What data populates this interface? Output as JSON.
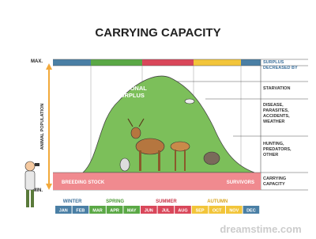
{
  "title": "CARRYING CAPACITY",
  "axis": {
    "max": "MAX.",
    "min": "MIN.",
    "label": "ANIMAL POPULATION"
  },
  "curve_label": [
    "SEASONAL",
    "SURPLUS"
  ],
  "band": {
    "left": "BREEDING STOCK",
    "right": "SURVIVORS"
  },
  "right_labels": [
    [
      "SURPLUS",
      "DECREASED BY"
    ],
    [
      "STARVATION"
    ],
    [
      "DISEASE,",
      "PARASITES,",
      "ACCIDENTS,",
      "WEATHER"
    ],
    [
      "HUNTING,",
      "PREDATORS,",
      "OTHER"
    ],
    [
      "CARRYING",
      "CAPACITY"
    ]
  ],
  "seasons": [
    "WINTER",
    "SPRING",
    "SUMMER",
    "AUTUMN"
  ],
  "months": [
    "JAN",
    "FEB",
    "MAR",
    "APR",
    "MAY",
    "JUN",
    "JUL",
    "AUG",
    "SEP",
    "OCT",
    "NOV",
    "DEC"
  ],
  "watermark": "dreamstime.com"
}
